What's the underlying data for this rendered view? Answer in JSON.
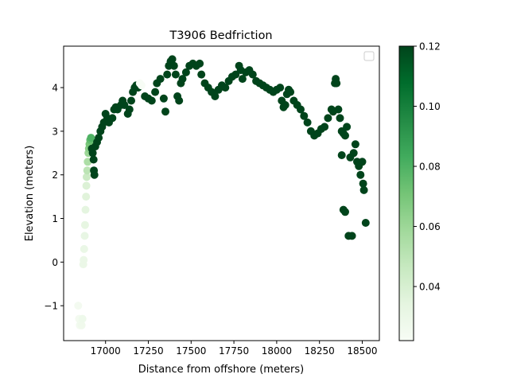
{
  "chart_data": {
    "type": "scatter",
    "title": "T3906 Bedfriction",
    "xlabel": "Distance from offshore (meters)",
    "ylabel": "Elevation (meters)",
    "xlim": [
      16755,
      18600
    ],
    "ylim": [
      -1.8,
      4.95
    ],
    "xticks": [
      16750,
      17000,
      17250,
      17500,
      17750,
      18000,
      18250,
      18500
    ],
    "xtick_labels": [
      "16750",
      "17000",
      "17250",
      "17500",
      "17750",
      "18000",
      "18250",
      "18500"
    ],
    "yticks": [
      -1,
      0,
      1,
      2,
      3,
      4
    ],
    "ytick_labels": [
      "−1",
      "0",
      "1",
      "2",
      "3",
      "4"
    ],
    "legend": "top-right, empty",
    "grid": false,
    "colorbar": {
      "label": "",
      "min": 0.022,
      "max": 0.12,
      "ticks": [
        0.04,
        0.06,
        0.08,
        0.1,
        0.12
      ],
      "tick_labels": [
        "0.04",
        "0.06",
        "0.08",
        "0.10",
        "0.12"
      ],
      "colormap": "Greens",
      "colors": [
        "#f7fcf5",
        "#e5f5e0",
        "#c7e9c0",
        "#a1d99b",
        "#74c476",
        "#41ab5d",
        "#238b45",
        "#006d2c",
        "#00441b"
      ]
    },
    "points": [
      [
        16840,
        -1.0,
        0.025
      ],
      [
        16845,
        -1.3,
        0.025
      ],
      [
        16850,
        -1.45,
        0.025
      ],
      [
        16855,
        -1.4,
        0.026
      ],
      [
        16860,
        -1.45,
        0.027
      ],
      [
        16865,
        -1.3,
        0.028
      ],
      [
        16870,
        -0.05,
        0.03
      ],
      [
        16872,
        0.05,
        0.03
      ],
      [
        16875,
        0.3,
        0.031
      ],
      [
        16878,
        0.6,
        0.032
      ],
      [
        16880,
        0.85,
        0.033
      ],
      [
        16883,
        1.2,
        0.034
      ],
      [
        16886,
        1.5,
        0.036
      ],
      [
        16888,
        1.75,
        0.038
      ],
      [
        16890,
        1.95,
        0.045
      ],
      [
        16893,
        2.1,
        0.05
      ],
      [
        16896,
        2.3,
        0.055
      ],
      [
        16900,
        2.5,
        0.06
      ],
      [
        16903,
        2.6,
        0.065
      ],
      [
        16906,
        2.7,
        0.07
      ],
      [
        16910,
        2.8,
        0.075
      ],
      [
        16915,
        2.85,
        0.08
      ],
      [
        16920,
        2.6,
        0.12
      ],
      [
        16925,
        2.5,
        0.12
      ],
      [
        16930,
        2.35,
        0.12
      ],
      [
        16932,
        2.1,
        0.12
      ],
      [
        16935,
        2.0,
        0.12
      ],
      [
        16940,
        2.65,
        0.12
      ],
      [
        16950,
        2.75,
        0.12
      ],
      [
        16960,
        2.85,
        0.12
      ],
      [
        16970,
        3.0,
        0.12
      ],
      [
        16980,
        3.1,
        0.12
      ],
      [
        16990,
        3.2,
        0.12
      ],
      [
        17000,
        3.4,
        0.12
      ],
      [
        17010,
        3.3,
        0.12
      ],
      [
        17020,
        3.2,
        0.12
      ],
      [
        17040,
        3.3,
        0.12
      ],
      [
        17050,
        3.5,
        0.12
      ],
      [
        17060,
        3.55,
        0.12
      ],
      [
        17070,
        3.5,
        0.12
      ],
      [
        17090,
        3.6,
        0.12
      ],
      [
        17100,
        3.7,
        0.12
      ],
      [
        17110,
        3.6,
        0.12
      ],
      [
        17130,
        3.4,
        0.12
      ],
      [
        17140,
        3.5,
        0.12
      ],
      [
        17150,
        3.7,
        0.12
      ],
      [
        17160,
        3.9,
        0.12
      ],
      [
        17170,
        4.0,
        0.12
      ],
      [
        17180,
        4.05,
        0.12
      ],
      [
        17190,
        4.0,
        0.12
      ],
      [
        17200,
        4.1,
        0.02
      ],
      [
        17210,
        4.05,
        0.02
      ],
      [
        17230,
        3.8,
        0.12
      ],
      [
        17250,
        3.75,
        0.12
      ],
      [
        17270,
        3.7,
        0.12
      ],
      [
        17290,
        3.9,
        0.12
      ],
      [
        17300,
        4.1,
        0.12
      ],
      [
        17320,
        4.2,
        0.12
      ],
      [
        17340,
        3.75,
        0.12
      ],
      [
        17350,
        3.45,
        0.12
      ],
      [
        17360,
        4.3,
        0.12
      ],
      [
        17370,
        4.5,
        0.12
      ],
      [
        17380,
        4.6,
        0.12
      ],
      [
        17390,
        4.65,
        0.12
      ],
      [
        17400,
        4.5,
        0.12
      ],
      [
        17410,
        4.3,
        0.12
      ],
      [
        17420,
        3.8,
        0.12
      ],
      [
        17430,
        3.7,
        0.12
      ],
      [
        17440,
        4.1,
        0.12
      ],
      [
        17450,
        4.2,
        0.12
      ],
      [
        17470,
        4.35,
        0.12
      ],
      [
        17490,
        4.5,
        0.12
      ],
      [
        17510,
        4.55,
        0.12
      ],
      [
        17530,
        4.5,
        0.12
      ],
      [
        17550,
        4.55,
        0.12
      ],
      [
        17560,
        4.3,
        0.12
      ],
      [
        17580,
        4.1,
        0.12
      ],
      [
        17600,
        4.0,
        0.12
      ],
      [
        17620,
        3.9,
        0.12
      ],
      [
        17640,
        3.8,
        0.12
      ],
      [
        17660,
        3.95,
        0.12
      ],
      [
        17680,
        4.05,
        0.12
      ],
      [
        17700,
        4.0,
        0.12
      ],
      [
        17720,
        4.15,
        0.12
      ],
      [
        17740,
        4.25,
        0.12
      ],
      [
        17760,
        4.3,
        0.12
      ],
      [
        17780,
        4.5,
        0.12
      ],
      [
        17790,
        4.4,
        0.12
      ],
      [
        17800,
        4.2,
        0.12
      ],
      [
        17820,
        4.35,
        0.12
      ],
      [
        17840,
        4.4,
        0.12
      ],
      [
        17860,
        4.3,
        0.12
      ],
      [
        17880,
        4.15,
        0.12
      ],
      [
        17900,
        4.1,
        0.12
      ],
      [
        17920,
        4.05,
        0.12
      ],
      [
        17940,
        4.0,
        0.12
      ],
      [
        17960,
        3.95,
        0.12
      ],
      [
        17980,
        3.9,
        0.12
      ],
      [
        18000,
        3.95,
        0.12
      ],
      [
        18020,
        4.0,
        0.12
      ],
      [
        18030,
        3.7,
        0.12
      ],
      [
        18040,
        3.55,
        0.12
      ],
      [
        18050,
        3.6,
        0.12
      ],
      [
        18060,
        3.85,
        0.12
      ],
      [
        18070,
        3.95,
        0.12
      ],
      [
        18080,
        3.9,
        0.12
      ],
      [
        18100,
        3.7,
        0.12
      ],
      [
        18120,
        3.6,
        0.12
      ],
      [
        18140,
        3.5,
        0.12
      ],
      [
        18160,
        3.35,
        0.12
      ],
      [
        18180,
        3.2,
        0.12
      ],
      [
        18200,
        3.0,
        0.12
      ],
      [
        18220,
        2.9,
        0.12
      ],
      [
        18240,
        2.95,
        0.12
      ],
      [
        18260,
        3.05,
        0.12
      ],
      [
        18280,
        3.1,
        0.12
      ],
      [
        18300,
        3.3,
        0.12
      ],
      [
        18320,
        3.5,
        0.12
      ],
      [
        18330,
        3.45,
        0.12
      ],
      [
        18340,
        4.1,
        0.12
      ],
      [
        18345,
        4.2,
        0.12
      ],
      [
        18350,
        4.1,
        0.12
      ],
      [
        18360,
        3.5,
        0.12
      ],
      [
        18370,
        3.3,
        0.12
      ],
      [
        18380,
        3.0,
        0.12
      ],
      [
        18390,
        2.95,
        0.12
      ],
      [
        18400,
        2.9,
        0.12
      ],
      [
        18410,
        3.1,
        0.12
      ],
      [
        18380,
        2.45,
        0.12
      ],
      [
        18390,
        1.2,
        0.12
      ],
      [
        18400,
        1.15,
        0.12
      ],
      [
        18420,
        0.6,
        0.12
      ],
      [
        18440,
        0.6,
        0.12
      ],
      [
        18430,
        2.4,
        0.12
      ],
      [
        18450,
        2.5,
        0.12
      ],
      [
        18460,
        2.7,
        0.12
      ],
      [
        18470,
        2.3,
        0.12
      ],
      [
        18480,
        2.2,
        0.12
      ],
      [
        18490,
        2.0,
        0.12
      ],
      [
        18500,
        2.3,
        0.12
      ],
      [
        18505,
        1.8,
        0.12
      ],
      [
        18510,
        1.65,
        0.12
      ],
      [
        18520,
        0.9,
        0.12
      ]
    ]
  }
}
